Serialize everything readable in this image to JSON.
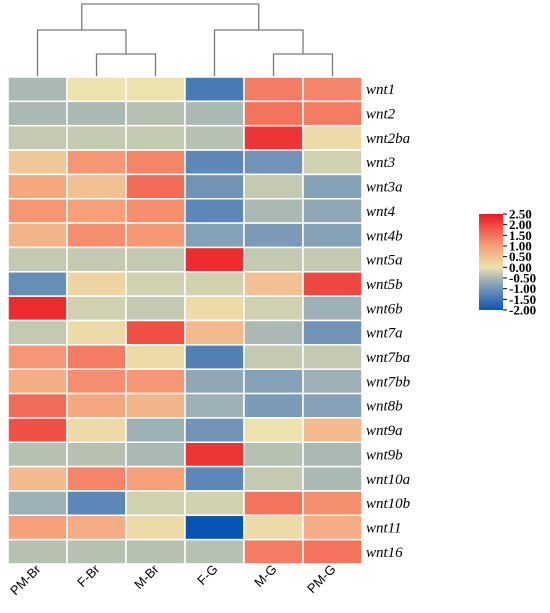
{
  "chart_data": {
    "type": "heatmap",
    "title": "",
    "xlabel": "",
    "ylabel": "",
    "columns": [
      "PM-Br",
      "F-Br",
      "M-Br",
      "F-G",
      "M-G",
      "PM-G"
    ],
    "rows": [
      "wnt1",
      "wnt2",
      "wnt2ba",
      "wnt3",
      "wnt3a",
      "wnt4",
      "wnt4b",
      "wnt5a",
      "wnt5b",
      "wnt6b",
      "wnt7a",
      "wnt7ba",
      "wnt7bb",
      "wnt8b",
      "wnt9a",
      "wnt9b",
      "wnt10a",
      "wnt10b",
      "wnt11",
      "wnt16"
    ],
    "values": [
      [
        -0.5,
        0.0,
        0.0,
        -1.4,
        1.4,
        1.3
      ],
      [
        -0.5,
        -0.5,
        -0.4,
        -0.5,
        1.5,
        1.4
      ],
      [
        -0.3,
        -0.3,
        -0.3,
        -0.4,
        2.2,
        0.1
      ],
      [
        0.4,
        1.1,
        1.3,
        -1.2,
        -1.0,
        -0.2
      ],
      [
        0.9,
        0.5,
        1.6,
        -1.0,
        -0.3,
        -0.8
      ],
      [
        1.1,
        1.0,
        1.2,
        -1.2,
        -0.5,
        -0.7
      ],
      [
        0.7,
        1.2,
        1.1,
        -0.8,
        -0.9,
        -0.8
      ],
      [
        -0.3,
        -0.3,
        -0.3,
        2.3,
        -0.3,
        -0.3
      ],
      [
        -1.1,
        0.2,
        -0.2,
        -0.2,
        0.5,
        2.0
      ],
      [
        2.3,
        -0.2,
        -0.3,
        0.1,
        -0.2,
        -0.6
      ],
      [
        -0.3,
        0.1,
        1.9,
        0.6,
        -0.5,
        -1.0
      ],
      [
        1.1,
        1.4,
        0.1,
        -1.3,
        -0.3,
        -0.3
      ],
      [
        0.8,
        1.2,
        1.1,
        -0.7,
        -0.8,
        -0.6
      ],
      [
        1.6,
        0.9,
        0.7,
        -0.6,
        -0.9,
        -0.8
      ],
      [
        1.9,
        0.1,
        -0.6,
        -1.0,
        0.0,
        0.6
      ],
      [
        -0.4,
        -0.4,
        -0.5,
        2.2,
        -0.4,
        -0.5
      ],
      [
        0.6,
        1.3,
        1.0,
        -1.2,
        -0.3,
        -0.5
      ],
      [
        -0.6,
        -1.2,
        -0.2,
        -0.2,
        1.5,
        1.2
      ],
      [
        1.0,
        0.8,
        0.1,
        -2.0,
        0.1,
        0.8
      ],
      [
        -0.4,
        -0.4,
        -0.4,
        -0.4,
        1.4,
        1.5
      ]
    ],
    "color_scale": {
      "stops": [
        {
          "value": -2.0,
          "color": "#0c54b3"
        },
        {
          "value": -0.75,
          "color": "#8aa4b7"
        },
        {
          "value": 0.0,
          "color": "#ebe2ad"
        },
        {
          "value": 1.0,
          "color": "#f6a07a"
        },
        {
          "value": 2.5,
          "color": "#ec1a24"
        }
      ],
      "tick_labels": [
        "2.50",
        "2.00",
        "1.50",
        "1.00",
        "0.50",
        "0.00",
        "-0.50",
        "-1.00",
        "-1.50",
        "-2.00"
      ],
      "tick_values": [
        2.5,
        2.0,
        1.5,
        1.0,
        0.5,
        0.0,
        -0.5,
        -1.0,
        -1.5,
        -2.0
      ]
    },
    "legend_position": "right",
    "dendrogram": "columns",
    "grid": false
  }
}
